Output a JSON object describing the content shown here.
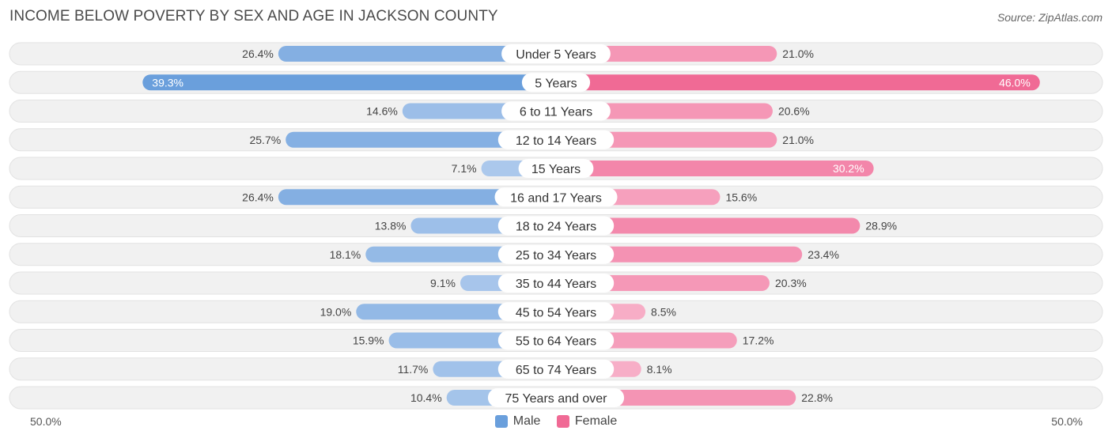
{
  "title": "INCOME BELOW POVERTY BY SEX AND AGE IN JACKSON COUNTY",
  "source": "Source: ZipAtlas.com",
  "chart_data": {
    "type": "bar",
    "orientation": "horizontal-diverging",
    "categories": [
      "Under 5 Years",
      "5 Years",
      "6 to 11 Years",
      "12 to 14 Years",
      "15 Years",
      "16 and 17 Years",
      "18 to 24 Years",
      "25 to 34 Years",
      "35 to 44 Years",
      "45 to 54 Years",
      "55 to 64 Years",
      "65 to 74 Years",
      "75 Years and over"
    ],
    "series": [
      {
        "name": "Male",
        "values": [
          26.4,
          39.3,
          14.6,
          25.7,
          7.1,
          26.4,
          13.8,
          18.1,
          9.1,
          19.0,
          15.9,
          11.7,
          10.4
        ],
        "labels": [
          "26.4%",
          "39.3%",
          "14.6%",
          "25.7%",
          "7.1%",
          "26.4%",
          "13.8%",
          "18.1%",
          "9.1%",
          "19.0%",
          "15.9%",
          "11.7%",
          "10.4%"
        ]
      },
      {
        "name": "Female",
        "values": [
          21.0,
          46.0,
          20.6,
          21.0,
          30.2,
          15.6,
          28.9,
          23.4,
          20.3,
          8.5,
          17.2,
          8.1,
          22.8
        ],
        "labels": [
          "21.0%",
          "46.0%",
          "20.6%",
          "21.0%",
          "30.2%",
          "15.6%",
          "28.9%",
          "23.4%",
          "20.3%",
          "8.5%",
          "17.2%",
          "8.1%",
          "22.8%"
        ]
      }
    ],
    "xlim": [
      -50,
      50
    ],
    "axis_left_label": "50.0%",
    "axis_right_label": "50.0%",
    "legend": [
      "Male",
      "Female"
    ],
    "colors": {
      "male_dark": "#6a9fdc",
      "male_light": "#abc8ec",
      "female_dark": "#f06a95",
      "female_light": "#f7aec7",
      "track": "#f1f1f1"
    }
  }
}
